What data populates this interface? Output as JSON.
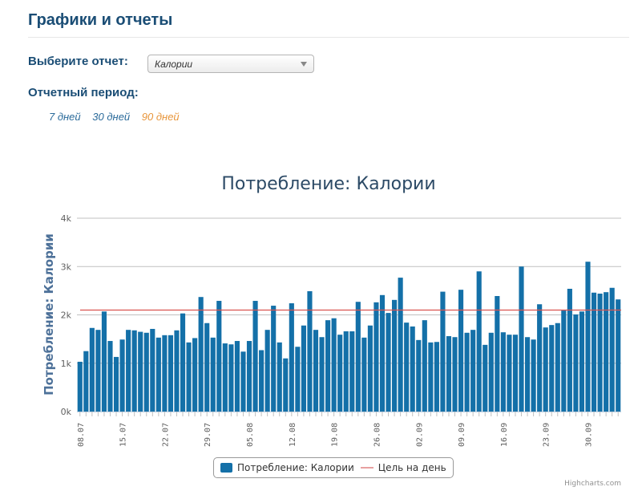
{
  "header": {
    "title": "Графики и отчеты"
  },
  "report_select": {
    "label": "Выберите отчет:",
    "value": "Калории"
  },
  "period": {
    "label": "Отчетный период:",
    "options": [
      {
        "label": "7 дней",
        "active": false
      },
      {
        "label": "30 дней",
        "active": false
      },
      {
        "label": "90 дней",
        "active": true
      }
    ]
  },
  "colors": {
    "title": "#1a4d75",
    "bar": "#1470a8",
    "goal_line": "#d9534f",
    "link": "#2a6a9a",
    "link_active": "#e8953a"
  },
  "legend": {
    "series_label": "Потребление: Калории",
    "goal_label": "Цель на день"
  },
  "credits": "Highcharts.com",
  "chart_data": {
    "type": "bar",
    "title": "Потребление: Калории",
    "xlabel": "",
    "ylabel": "Потребление: Калории",
    "ylim": [
      0,
      4000
    ],
    "yticks": [
      "0k",
      "1k",
      "2k",
      "3k",
      "4k"
    ],
    "grid": true,
    "legend_position": "bottom-center",
    "xtick_labels": [
      "08.07",
      "15.07",
      "22.07",
      "29.07",
      "05.08",
      "12.08",
      "19.08",
      "26.08",
      "02.09",
      "09.09",
      "16.09",
      "23.09",
      "30.09"
    ],
    "start_date": "08.07",
    "series": [
      {
        "name": "Потребление: Калории",
        "type": "bar",
        "values": [
          1030,
          1250,
          1730,
          1690,
          2070,
          1460,
          1130,
          1490,
          1690,
          1680,
          1650,
          1630,
          1710,
          1530,
          1580,
          1580,
          1680,
          2030,
          1430,
          1520,
          2370,
          1830,
          1530,
          2290,
          1410,
          1390,
          1460,
          1240,
          1460,
          2290,
          1270,
          1690,
          2190,
          1430,
          1100,
          2240,
          1340,
          1780,
          2490,
          1690,
          1540,
          1890,
          1930,
          1590,
          1660,
          1660,
          2270,
          1530,
          1780,
          2260,
          2410,
          2040,
          2310,
          2770,
          1840,
          1760,
          1480,
          1890,
          1430,
          1440,
          2480,
          1560,
          1540,
          2520,
          1630,
          1690,
          2900,
          1380,
          1630,
          2390,
          1640,
          1590,
          1590,
          3000,
          1540,
          1490,
          2220,
          1740,
          1790,
          1830,
          2090,
          2540,
          2010,
          2070,
          3100,
          2460,
          2440,
          2470,
          2560,
          2320
        ]
      },
      {
        "name": "Цель на день",
        "type": "line",
        "value": 2100
      }
    ]
  }
}
